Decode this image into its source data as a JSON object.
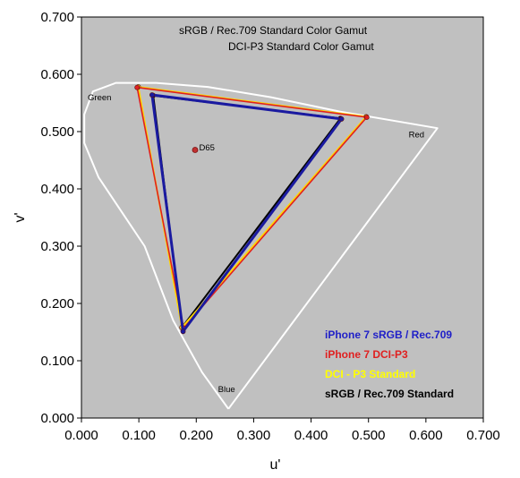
{
  "chart_data": {
    "type": "scatter",
    "title_lines": [
      "sRGB / Rec.709 Standard Color Gamut",
      "DCI-P3 Standard Color Gamut"
    ],
    "xlabel": "u'",
    "ylabel": "v'",
    "xlim": [
      0,
      0.7
    ],
    "ylim": [
      0,
      0.7
    ],
    "x_ticks": [
      "0.000",
      "0.100",
      "0.200",
      "0.300",
      "0.400",
      "0.500",
      "0.600",
      "0.700"
    ],
    "y_ticks": [
      "0.000",
      "0.100",
      "0.200",
      "0.300",
      "0.400",
      "0.500",
      "0.600",
      "0.700"
    ],
    "x_tick_values": [
      0,
      0.1,
      0.2,
      0.3,
      0.4,
      0.5,
      0.6,
      0.7
    ],
    "y_tick_values": [
      0,
      0.1,
      0.2,
      0.3,
      0.4,
      0.5,
      0.6,
      0.7
    ],
    "grid": false,
    "legend_position": "bottom-right",
    "plot_background": "#c0c0c0",
    "locus": {
      "color": "#ffffff",
      "points": [
        [
          0.256,
          0.016
        ],
        [
          0.21,
          0.08
        ],
        [
          0.16,
          0.17
        ],
        [
          0.11,
          0.3
        ],
        [
          0.03,
          0.42
        ],
        [
          0.005,
          0.48
        ],
        [
          0.005,
          0.53
        ],
        [
          0.02,
          0.57
        ],
        [
          0.06,
          0.585
        ],
        [
          0.13,
          0.585
        ],
        [
          0.22,
          0.578
        ],
        [
          0.33,
          0.56
        ],
        [
          0.45,
          0.535
        ],
        [
          0.62,
          0.506
        ],
        [
          0.256,
          0.016
        ]
      ]
    },
    "annotations": [
      {
        "text": "Green",
        "u": 0.011,
        "v": 0.555
      },
      {
        "text": "Red",
        "u": 0.57,
        "v": 0.49
      },
      {
        "text": "Blue",
        "u": 0.238,
        "v": 0.045
      },
      {
        "text": "D65",
        "u": 0.205,
        "v": 0.467
      }
    ],
    "white_point": {
      "name": "D65",
      "u": 0.198,
      "v": 0.468
    },
    "series": [
      {
        "name": "sRGB / Rec.709 Standard",
        "color": "#000000",
        "width": 2,
        "points": [
          [
            0.451,
            0.523
          ],
          [
            0.125,
            0.563
          ],
          [
            0.175,
            0.158
          ]
        ]
      },
      {
        "name": "DCI - P3 Standard",
        "color": "#ffd700",
        "width": 2,
        "points": [
          [
            0.496,
            0.526
          ],
          [
            0.099,
            0.578
          ],
          [
            0.175,
            0.158
          ]
        ]
      },
      {
        "name": "iPhone 7 DCI-P3",
        "color": "#e02020",
        "width": 1.6,
        "points": [
          [
            0.497,
            0.525
          ],
          [
            0.097,
            0.577
          ],
          [
            0.178,
            0.157
          ]
        ]
      },
      {
        "name": "iPhone 7 sRGB / Rec.709",
        "color": "#1a1aa0",
        "width": 3,
        "points": [
          [
            0.453,
            0.522
          ],
          [
            0.123,
            0.564
          ],
          [
            0.177,
            0.151
          ]
        ]
      }
    ],
    "legend": [
      {
        "label": "iPhone 7 sRGB / Rec.709",
        "color": "#1f1fc8"
      },
      {
        "label": "iPhone 7 DCI-P3",
        "color": "#e02020"
      },
      {
        "label": "DCI - P3 Standard",
        "color": "#ffff00"
      },
      {
        "label": "sRGB / Rec.709 Standard",
        "color": "#000000"
      }
    ]
  }
}
